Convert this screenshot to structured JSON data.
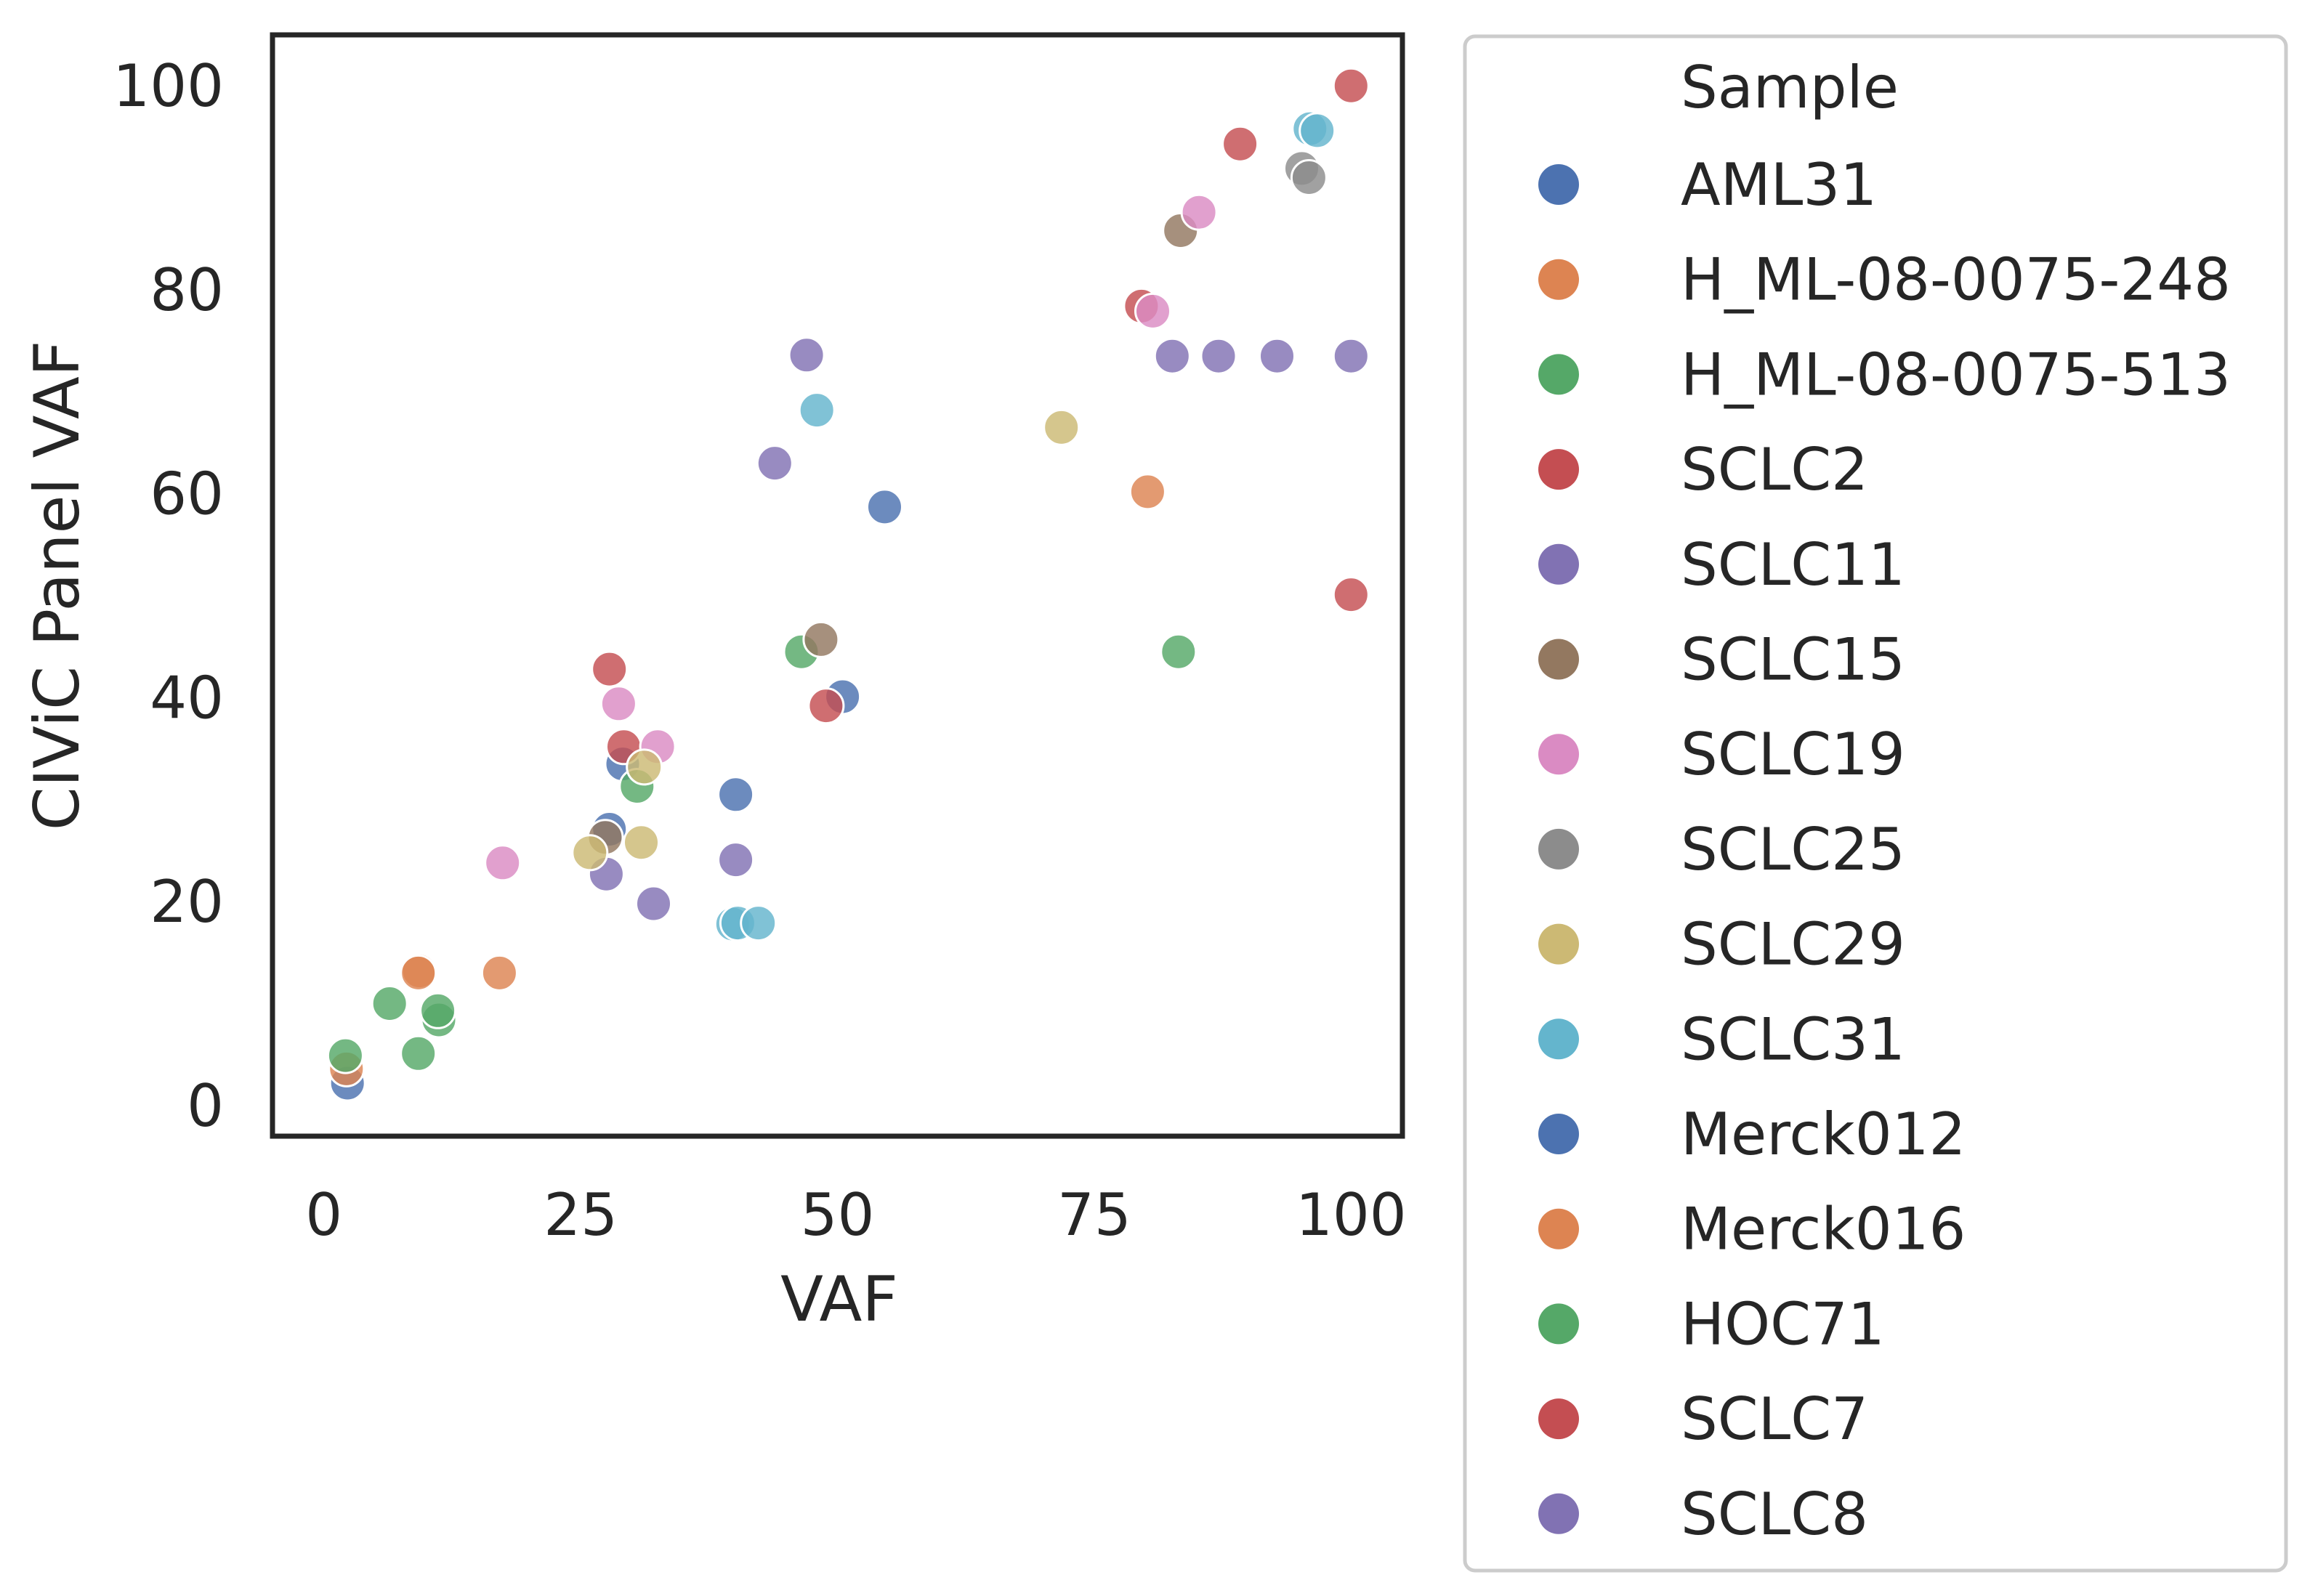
{
  "chart_data": {
    "type": "scatter",
    "title": "",
    "xlabel": "VAF",
    "ylabel": "CIViC Panel VAF",
    "xlim": [
      -5,
      105
    ],
    "ylim": [
      -3,
      105
    ],
    "xticks": [
      0,
      25,
      50,
      75,
      100
    ],
    "yticks": [
      0,
      20,
      40,
      60,
      80,
      100
    ],
    "grid": false,
    "legend": {
      "title": "Sample",
      "placement": "outside-right"
    },
    "series": [
      {
        "name": "AML31",
        "color": "#4c72b0",
        "points": [
          [
            2.3,
            2.2
          ],
          [
            27.8,
            27.1
          ],
          [
            29.1,
            33.5
          ],
          [
            40.1,
            30.5
          ],
          [
            50.5,
            40.1
          ],
          [
            54.6,
            58.7
          ]
        ]
      },
      {
        "name": "H_ML-08-0075-248",
        "color": "#dd8452",
        "points": [
          [
            2.2,
            3.6
          ],
          [
            9.3,
            13.2
          ],
          [
            9.2,
            13.0
          ],
          [
            17.1,
            13.0
          ],
          [
            80.2,
            60.2
          ]
        ]
      },
      {
        "name": "H_ML-08-0075-513",
        "color": "#55a868",
        "points": [
          [
            2.1,
            4.9
          ],
          [
            6.4,
            10.0
          ],
          [
            9.2,
            5.1
          ],
          [
            11.2,
            8.4
          ],
          [
            11.1,
            9.3
          ],
          [
            30.5,
            31.3
          ],
          [
            46.5,
            44.5
          ],
          [
            83.2,
            44.5
          ]
        ]
      },
      {
        "name": "SCLC2",
        "color": "#c44e52",
        "points": [
          [
            27.8,
            42.8
          ],
          [
            29.2,
            35.2
          ],
          [
            48.9,
            39.2
          ],
          [
            79.6,
            78.4
          ],
          [
            89.2,
            94.3
          ],
          [
            100.0,
            100.0
          ],
          [
            100.0,
            50.1
          ]
        ]
      },
      {
        "name": "SCLC11",
        "color": "#8172b3",
        "points": [
          [
            27.5,
            22.7
          ],
          [
            32.1,
            19.8
          ],
          [
            40.1,
            24.1
          ],
          [
            43.9,
            63.0
          ],
          [
            47.0,
            73.6
          ],
          [
            82.6,
            73.5
          ],
          [
            87.1,
            73.5
          ],
          [
            92.8,
            73.5
          ],
          [
            100.0,
            73.5
          ]
        ]
      },
      {
        "name": "SCLC15",
        "color": "#937860",
        "points": [
          [
            27.4,
            26.3
          ],
          [
            48.4,
            45.7
          ],
          [
            83.4,
            85.8
          ]
        ]
      },
      {
        "name": "SCLC19",
        "color": "#da8bc3",
        "points": [
          [
            17.4,
            23.8
          ],
          [
            28.7,
            39.4
          ],
          [
            32.5,
            35.2
          ],
          [
            80.7,
            77.9
          ],
          [
            85.2,
            87.6
          ]
        ]
      },
      {
        "name": "SCLC25",
        "color": "#8c8c8c",
        "points": [
          [
            95.2,
            91.9
          ],
          [
            95.9,
            91.0
          ]
        ]
      },
      {
        "name": "SCLC29",
        "color": "#ccb974",
        "points": [
          [
            25.9,
            24.8
          ],
          [
            30.9,
            25.8
          ],
          [
            31.2,
            33.2
          ],
          [
            71.8,
            66.5
          ]
        ]
      },
      {
        "name": "SCLC31",
        "color": "#64b5cd",
        "points": [
          [
            39.8,
            17.8
          ],
          [
            40.3,
            17.9
          ],
          [
            42.3,
            17.9
          ],
          [
            48.0,
            68.2
          ],
          [
            96.0,
            95.8
          ],
          [
            96.7,
            95.6
          ]
        ]
      },
      {
        "name": "Merck012",
        "color": "#4c72b0",
        "points": []
      },
      {
        "name": "Merck016",
        "color": "#dd8452",
        "points": []
      },
      {
        "name": "HOC71",
        "color": "#55a868",
        "points": []
      },
      {
        "name": "SCLC7",
        "color": "#c44e52",
        "points": []
      },
      {
        "name": "SCLC8",
        "color": "#8172b3",
        "points": []
      }
    ]
  }
}
